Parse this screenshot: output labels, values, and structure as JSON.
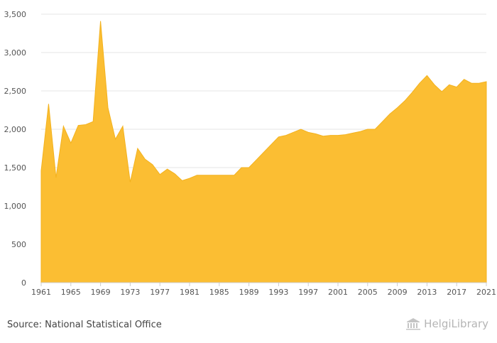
{
  "chart_data": {
    "type": "area",
    "title": "",
    "xlabel": "",
    "ylabel": "",
    "x": [
      1961,
      1962,
      1963,
      1964,
      1965,
      1966,
      1967,
      1968,
      1969,
      1970,
      1971,
      1972,
      1973,
      1974,
      1975,
      1976,
      1977,
      1978,
      1979,
      1980,
      1981,
      1982,
      1983,
      1984,
      1985,
      1986,
      1987,
      1988,
      1989,
      1990,
      1991,
      1992,
      1993,
      1994,
      1995,
      1996,
      1997,
      1998,
      1999,
      2000,
      2001,
      2002,
      2003,
      2004,
      2005,
      2006,
      2007,
      2008,
      2009,
      2010,
      2011,
      2012,
      2013,
      2014,
      2015,
      2016,
      2017,
      2018,
      2019,
      2020,
      2021
    ],
    "series": [
      {
        "values": [
          1460,
          2330,
          1370,
          2040,
          1820,
          2050,
          2060,
          2100,
          3410,
          2280,
          1870,
          2040,
          1310,
          1750,
          1610,
          1540,
          1410,
          1480,
          1420,
          1330,
          1360,
          1400,
          1400,
          1400,
          1400,
          1400,
          1400,
          1500,
          1500,
          1600,
          1700,
          1800,
          1900,
          1920,
          1960,
          2000,
          1960,
          1940,
          1910,
          1920,
          1920,
          1930,
          1950,
          1970,
          2000,
          2000,
          2100,
          2200,
          2280,
          2370,
          2480,
          2600,
          2700,
          2580,
          2490,
          2580,
          2550,
          2650,
          2600,
          2600,
          2620
        ]
      }
    ],
    "xticks": [
      "1961",
      "1965",
      "1969",
      "1973",
      "1977",
      "1981",
      "1985",
      "1989",
      "1993",
      "1997",
      "2001",
      "2005",
      "2009",
      "2013",
      "2017",
      "2021"
    ],
    "yticks": [
      "0",
      "500",
      "1,000",
      "1,500",
      "2,000",
      "2,500",
      "3,000",
      "3,500"
    ],
    "ylim": [
      0,
      3500
    ],
    "xlim": [
      1961,
      2021
    ],
    "grid": "horizontal",
    "legend": "none",
    "colors": {
      "fill": "#fbbe33",
      "stroke": "#f3b21e",
      "grid": "#e6e6e6",
      "axis": "#cccccc"
    }
  },
  "footer": {
    "source": "Source: National Statistical Office",
    "brand": "HelgiLibrary"
  },
  "icons": {
    "brand": "library-building-icon"
  }
}
